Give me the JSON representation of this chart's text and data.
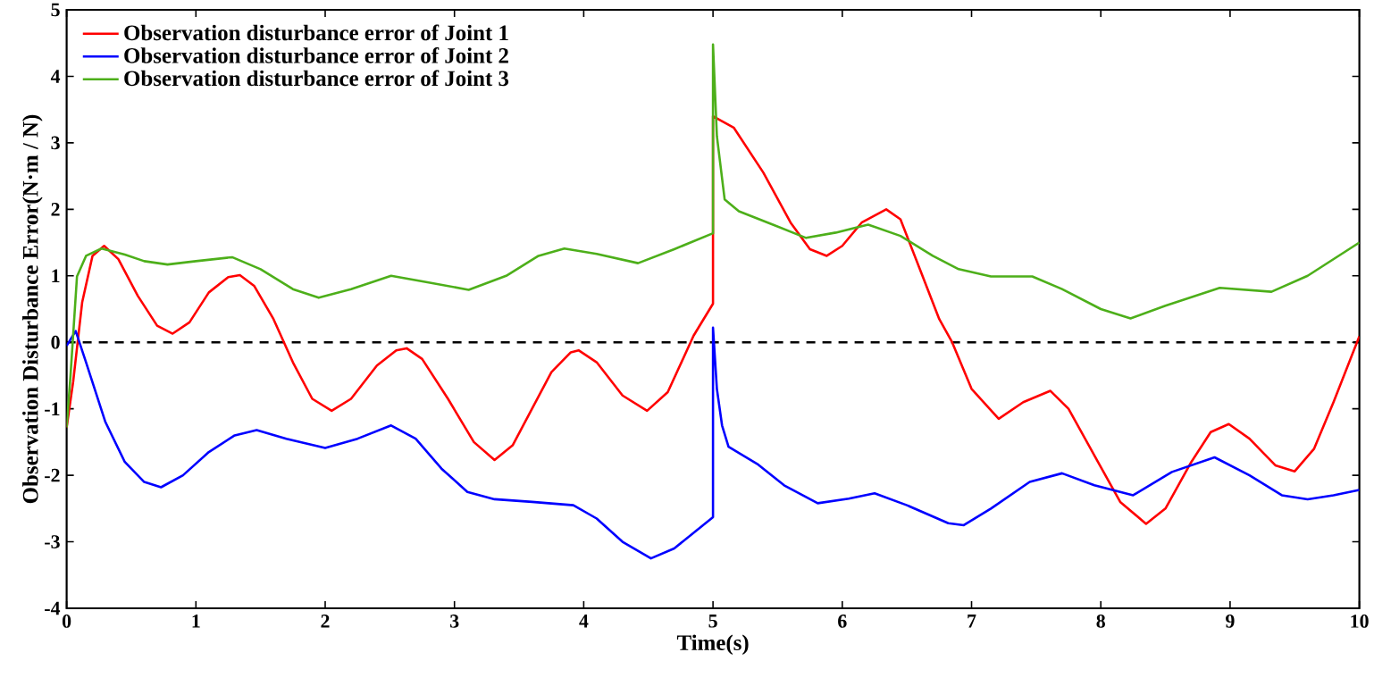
{
  "chart_data": {
    "type": "line",
    "xlabel": "Time(s)",
    "ylabel": "Observation Disturbance Error(N·m / N)",
    "xlim": [
      0,
      10
    ],
    "ylim": [
      -4,
      5
    ],
    "xticks": [
      0,
      1,
      2,
      3,
      4,
      5,
      6,
      7,
      8,
      9,
      10
    ],
    "yticks": [
      -4,
      -3,
      -2,
      -1,
      0,
      1,
      2,
      3,
      4,
      5
    ],
    "grid": false,
    "legend": "top left",
    "line_style": "solid",
    "marker": "none",
    "ref_lines": [
      {
        "axis": "y",
        "value": 0,
        "color": "#000000",
        "line_style": "dashed"
      }
    ],
    "series": [
      {
        "name": "Observation disturbance error of Joint 1",
        "color": "#ff0000",
        "x": [
          0,
          0.05,
          0.12,
          0.2,
          0.29,
          0.4,
          0.55,
          0.7,
          0.82,
          0.95,
          1.1,
          1.25,
          1.34,
          1.45,
          1.6,
          1.75,
          1.9,
          2.05,
          2.2,
          2.4,
          2.55,
          2.63,
          2.75,
          2.95,
          3.15,
          3.31,
          3.45,
          3.6,
          3.75,
          3.9,
          3.96,
          4.1,
          4.3,
          4.49,
          4.65,
          4.85,
          5.0,
          5.0,
          5.16,
          5.39,
          5.6,
          5.75,
          5.88,
          6.0,
          6.15,
          6.34,
          6.45,
          6.6,
          6.75,
          6.85,
          7.0,
          7.21,
          7.4,
          7.61,
          7.75,
          7.95,
          8.15,
          8.35,
          8.5,
          8.7,
          8.85,
          8.99,
          9.15,
          9.35,
          9.5,
          9.65,
          9.8,
          10
        ],
        "values": [
          -1.28,
          -0.6,
          0.6,
          1.3,
          1.45,
          1.25,
          0.7,
          0.25,
          0.13,
          0.3,
          0.75,
          0.98,
          1.01,
          0.85,
          0.35,
          -0.3,
          -0.85,
          -1.03,
          -0.85,
          -0.35,
          -0.12,
          -0.09,
          -0.25,
          -0.85,
          -1.5,
          -1.77,
          -1.55,
          -1.0,
          -0.45,
          -0.15,
          -0.12,
          -0.3,
          -0.8,
          -1.03,
          -0.75,
          0.1,
          0.58,
          3.4,
          3.23,
          2.55,
          1.8,
          1.4,
          1.3,
          1.45,
          1.8,
          2.0,
          1.85,
          1.1,
          0.35,
          0,
          -0.7,
          -1.15,
          -0.9,
          -0.73,
          -1.0,
          -1.7,
          -2.4,
          -2.73,
          -2.5,
          -1.8,
          -1.35,
          -1.23,
          -1.45,
          -1.85,
          -1.94,
          -1.6,
          -0.9,
          0.09
        ]
      },
      {
        "name": "Observation disturbance error of Joint 2",
        "color": "#0000ff",
        "x": [
          0,
          0.07,
          0.15,
          0.3,
          0.45,
          0.6,
          0.73,
          0.9,
          1.1,
          1.3,
          1.47,
          1.7,
          2.0,
          2.25,
          2.51,
          2.7,
          2.9,
          3.1,
          3.31,
          3.6,
          3.92,
          4.1,
          4.3,
          4.52,
          4.7,
          5.0,
          5.0,
          5.03,
          5.07,
          5.12,
          5.35,
          5.55,
          5.81,
          6.05,
          6.25,
          6.5,
          6.82,
          6.94,
          7.15,
          7.45,
          7.7,
          7.95,
          8.25,
          8.55,
          8.88,
          9.15,
          9.4,
          9.6,
          9.8,
          10
        ],
        "values": [
          -0.05,
          0.17,
          -0.3,
          -1.2,
          -1.8,
          -2.1,
          -2.18,
          -2.0,
          -1.65,
          -1.4,
          -1.32,
          -1.45,
          -1.59,
          -1.45,
          -1.25,
          -1.45,
          -1.9,
          -2.25,
          -2.36,
          -2.4,
          -2.45,
          -2.65,
          -3.0,
          -3.25,
          -3.1,
          -2.63,
          0.22,
          -0.7,
          -1.25,
          -1.57,
          -1.84,
          -2.15,
          -2.42,
          -2.35,
          -2.27,
          -2.45,
          -2.72,
          -2.75,
          -2.5,
          -2.1,
          -1.97,
          -2.15,
          -2.3,
          -1.95,
          -1.73,
          -2.0,
          -2.3,
          -2.36,
          -2.3,
          -2.22
        ]
      },
      {
        "name": "Observation disturbance error of Joint 3",
        "color": "#4daf1a",
        "x": [
          0,
          0.03,
          0.08,
          0.15,
          0.27,
          0.45,
          0.6,
          0.78,
          1.0,
          1.28,
          1.5,
          1.75,
          1.95,
          2.2,
          2.51,
          2.8,
          3.11,
          3.4,
          3.65,
          3.85,
          4.1,
          4.42,
          4.7,
          5.0,
          5.0,
          5.03,
          5.09,
          5.2,
          5.45,
          5.72,
          5.95,
          6.2,
          6.45,
          6.7,
          6.9,
          7.15,
          7.47,
          7.7,
          8.0,
          8.23,
          8.5,
          8.92,
          9.32,
          9.6,
          10
        ],
        "values": [
          -1.28,
          -0.5,
          0.99,
          1.3,
          1.41,
          1.32,
          1.22,
          1.17,
          1.22,
          1.28,
          1.1,
          0.8,
          0.67,
          0.8,
          1.0,
          0.9,
          0.79,
          1.0,
          1.3,
          1.41,
          1.33,
          1.19,
          1.4,
          1.64,
          4.48,
          3.1,
          2.15,
          1.97,
          1.78,
          1.57,
          1.65,
          1.77,
          1.6,
          1.3,
          1.1,
          0.99,
          0.99,
          0.8,
          0.5,
          0.36,
          0.55,
          0.82,
          0.76,
          1.0,
          1.5
        ]
      }
    ]
  }
}
